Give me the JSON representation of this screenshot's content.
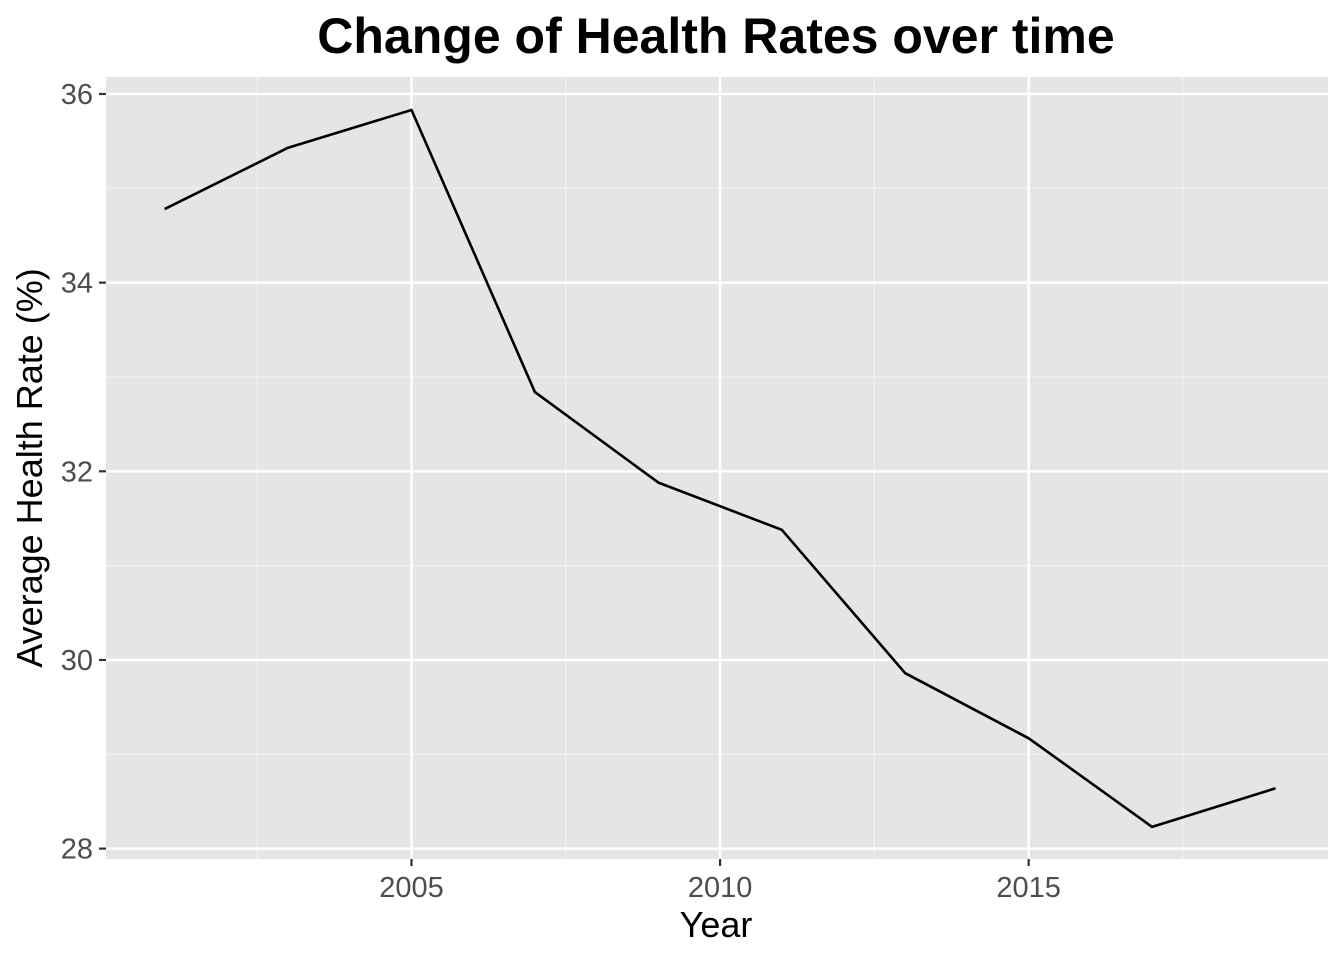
{
  "colors": {
    "panel_background": "#e5e5e5",
    "grid_major": "#ffffff",
    "grid_minor": "#f2f2f2",
    "line": "#000000",
    "tick_mark": "#333333"
  },
  "chart_data": {
    "type": "line",
    "title": "Change of Health Rates over time",
    "xlabel": "Year",
    "ylabel": "Average Health Rate (%)",
    "xlim": [
      2000.05,
      2019.85
    ],
    "ylim": [
      27.89,
      36.18
    ],
    "x_ticks": [
      2005,
      2010,
      2015
    ],
    "x_tick_labels": [
      "2005",
      "2010",
      "2015"
    ],
    "y_ticks": [
      28,
      30,
      32,
      34,
      36
    ],
    "y_tick_labels": [
      "28",
      "30",
      "32",
      "34",
      "36"
    ],
    "x_minor": [
      2002.5,
      2007.5,
      2012.5,
      2017.5
    ],
    "y_minor": [
      29,
      31,
      33,
      35
    ],
    "grid": true,
    "legend": "none",
    "series": [
      {
        "x": [
          2001,
          2003,
          2005,
          2007,
          2009,
          2011,
          2013,
          2015,
          2017,
          2019
        ],
        "y": [
          34.78,
          35.43,
          35.83,
          32.84,
          31.88,
          31.38,
          29.86,
          29.17,
          28.23,
          28.64
        ]
      }
    ]
  }
}
